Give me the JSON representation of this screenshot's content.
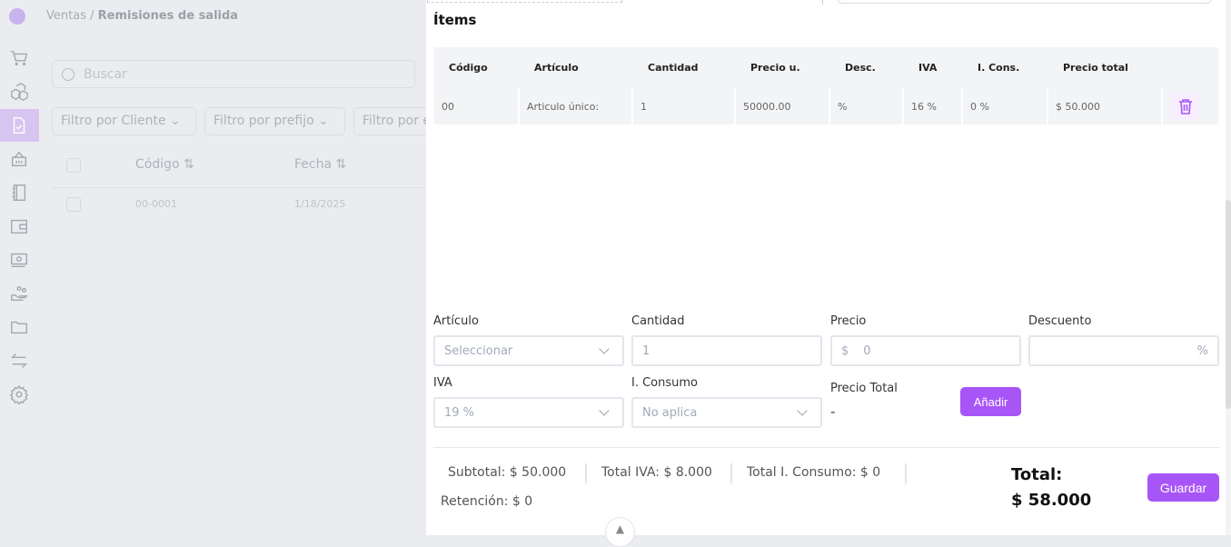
{
  "breadcrumb": {
    "parent": "Ventas",
    "current": "Remisiones de salida"
  },
  "sidebar": {
    "items": [
      "cart-icon",
      "boxes-icon",
      "document-check-icon",
      "basket-icon",
      "notebook-icon",
      "wallet-icon",
      "cash-icon",
      "hand-coins-icon",
      "folder-icon",
      "transfer-icon",
      "gear-icon"
    ],
    "active": 2,
    "accent": "#d8c4f1"
  },
  "list": {
    "search_placeholder": "Buscar",
    "filters": [
      "Filtro por Cliente",
      "Filtro por prefijo",
      "Filtro por e"
    ],
    "columns": [
      "Código",
      "Fecha"
    ],
    "rows": [
      {
        "code": "00-0001",
        "date": "1/18/2025"
      }
    ]
  },
  "panel": {
    "items_title": "Ítems",
    "table": {
      "columns": [
        "Código",
        "Artículo",
        "Cantidad",
        "Precio u.",
        "Desc.",
        "IVA",
        "I. Cons.",
        "Precio total"
      ],
      "rows": [
        [
          "00",
          "Articulo único:",
          "1",
          "50000.00",
          "%",
          "16 %",
          "0 %",
          "$ 50.000"
        ]
      ]
    },
    "form": {
      "articulo_label": "Artículo",
      "articulo_value": "Seleccionar",
      "cantidad_label": "Cantidad",
      "cantidad_value": "1",
      "precio_label": "Precio",
      "precio_prefix": "$",
      "precio_value": "0",
      "descuento_label": "Descuento",
      "descuento_suffix": "%",
      "iva_label": "IVA",
      "iva_value": "19 %",
      "iconsumo_label": "I. Consumo",
      "iconsumo_value": "No aplica",
      "precio_total_label": "Precio Total",
      "precio_total_value": "-",
      "add_label": "Añadir"
    },
    "totals": {
      "subtotal": "Subtotal: $ 50.000",
      "iva": "Total IVA: $ 8.000",
      "iconsumo": "Total I. Consumo: $ 0",
      "retencion": "Retención: $ 0",
      "total_label": "Total:",
      "total_value": "$ 58.000"
    },
    "save_label": "Guardar",
    "accent": "#a855f7"
  }
}
